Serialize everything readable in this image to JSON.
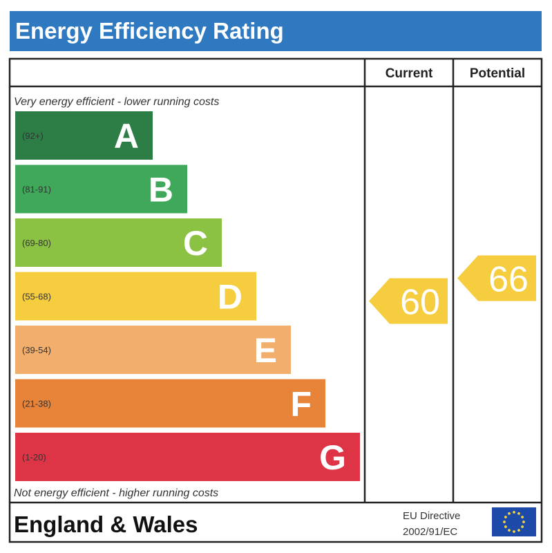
{
  "title": "Energy Efficiency Rating",
  "chart_data": {
    "type": "bar",
    "columns": {
      "current": "Current",
      "potential": "Potential"
    },
    "top_note": "Very energy efficient - lower running costs",
    "bottom_note": "Not energy efficient - higher running costs",
    "bands": [
      {
        "letter": "A",
        "range": "(92+)",
        "color": "#2d7d47"
      },
      {
        "letter": "B",
        "range": "(81-91)",
        "color": "#3fa85a"
      },
      {
        "letter": "C",
        "range": "(69-80)",
        "color": "#8cc243"
      },
      {
        "letter": "D",
        "range": "(55-68)",
        "color": "#f5cd3f"
      },
      {
        "letter": "E",
        "range": "(39-54)",
        "color": "#f2ae6c"
      },
      {
        "letter": "F",
        "range": "(21-38)",
        "color": "#e8843a"
      },
      {
        "letter": "G",
        "range": "(1-20)",
        "color": "#de3546"
      }
    ],
    "current": {
      "value": 60,
      "band": "D",
      "color": "#f5cd3f"
    },
    "potential": {
      "value": 66,
      "band": "D",
      "color": "#f5cd3f"
    }
  },
  "footer": {
    "region": "England & Wales",
    "directive_line1": "EU Directive",
    "directive_line2": "2002/91/EC",
    "flag_colors": {
      "background": "#1d4aa8",
      "stars": "#f5d53a"
    }
  }
}
